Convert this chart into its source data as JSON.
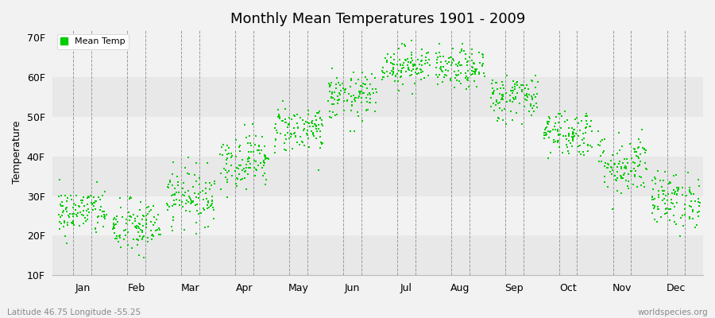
{
  "title": "Monthly Mean Temperatures 1901 - 2009",
  "ylabel": "Temperature",
  "xlabel_labels": [
    "Jan",
    "Feb",
    "Mar",
    "Apr",
    "May",
    "Jun",
    "Jul",
    "Aug",
    "Sep",
    "Oct",
    "Nov",
    "Dec"
  ],
  "subtitle_left": "Latitude 46.75 Longitude -55.25",
  "subtitle_right": "worldspecies.org",
  "legend_label": "Mean Temp",
  "dot_color": "#00cc00",
  "background_color": "#f2f2f2",
  "ytick_labels": [
    "10F",
    "20F",
    "30F",
    "40F",
    "50F",
    "60F",
    "70F"
  ],
  "ytick_values": [
    10,
    20,
    30,
    40,
    50,
    60,
    70
  ],
  "ylim": [
    10,
    72
  ],
  "years": 109,
  "monthly_means": [
    26,
    22,
    30,
    39,
    47,
    55,
    63,
    62,
    55,
    46,
    38,
    29
  ],
  "monthly_stds": [
    3.0,
    3.5,
    3.5,
    3.5,
    3.0,
    3.0,
    2.5,
    2.5,
    3.0,
    3.0,
    4.0,
    3.5
  ]
}
